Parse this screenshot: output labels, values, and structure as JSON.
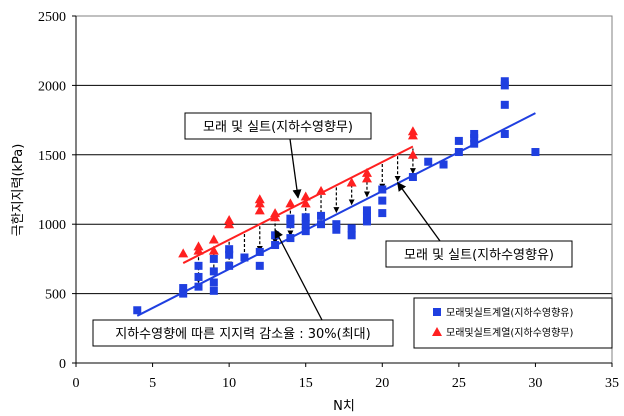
{
  "chart_data": {
    "type": "scatter",
    "xlabel": "N치",
    "ylabel": "극한지지력(kPa)",
    "xlim": [
      0,
      35
    ],
    "ylim": [
      0,
      2500
    ],
    "xticks": [
      "0",
      "5",
      "10",
      "15",
      "20",
      "25",
      "30",
      "35"
    ],
    "yticks": [
      "0",
      "500",
      "1000",
      "1500",
      "2000",
      "2500"
    ],
    "grid": "horizontal",
    "legend_position": "bottom-right",
    "series": [
      {
        "name": "모래및실트계열(지하수영향유)",
        "marker": "square",
        "color": "#1f3fe0",
        "points": [
          [
            4,
            380
          ],
          [
            7,
            500
          ],
          [
            7,
            540
          ],
          [
            8,
            550
          ],
          [
            8,
            620
          ],
          [
            8,
            700
          ],
          [
            9,
            520
          ],
          [
            9,
            580
          ],
          [
            9,
            660
          ],
          [
            9,
            750
          ],
          [
            10,
            700
          ],
          [
            10,
            780
          ],
          [
            10,
            820
          ],
          [
            11,
            760
          ],
          [
            12,
            700
          ],
          [
            12,
            800
          ],
          [
            13,
            850
          ],
          [
            13,
            920
          ],
          [
            14,
            900
          ],
          [
            14,
            1000
          ],
          [
            14,
            1040
          ],
          [
            15,
            950
          ],
          [
            15,
            1000
          ],
          [
            15,
            1050
          ],
          [
            16,
            1000
          ],
          [
            16,
            1060
          ],
          [
            17,
            960
          ],
          [
            17,
            1000
          ],
          [
            18,
            920
          ],
          [
            18,
            970
          ],
          [
            19,
            1020
          ],
          [
            19,
            1060
          ],
          [
            19,
            1100
          ],
          [
            20,
            1080
          ],
          [
            20,
            1170
          ],
          [
            20,
            1250
          ],
          [
            22,
            1340
          ],
          [
            23,
            1450
          ],
          [
            24,
            1430
          ],
          [
            25,
            1520
          ],
          [
            25,
            1600
          ],
          [
            26,
            1580
          ],
          [
            26,
            1620
          ],
          [
            26,
            1650
          ],
          [
            28,
            1650
          ],
          [
            28,
            1860
          ],
          [
            28,
            2000
          ],
          [
            28,
            2030
          ],
          [
            30,
            1520
          ]
        ]
      },
      {
        "name": "모래및실트계열(지하수영향무)",
        "marker": "triangle",
        "color": "#ff2020",
        "points": [
          [
            7,
            790
          ],
          [
            8,
            810
          ],
          [
            8,
            840
          ],
          [
            9,
            810
          ],
          [
            9,
            890
          ],
          [
            10,
            1000
          ],
          [
            10,
            1030
          ],
          [
            12,
            1100
          ],
          [
            12,
            1150
          ],
          [
            12,
            1180
          ],
          [
            13,
            1050
          ],
          [
            13,
            1080
          ],
          [
            14,
            1150
          ],
          [
            15,
            1150
          ],
          [
            15,
            1200
          ],
          [
            16,
            1240
          ],
          [
            18,
            1300
          ],
          [
            19,
            1330
          ],
          [
            19,
            1370
          ],
          [
            22,
            1500
          ],
          [
            22,
            1640
          ],
          [
            22,
            1670
          ]
        ]
      }
    ],
    "trendlines": [
      {
        "series": "모래및실트계열(지하수영향유)",
        "color": "#1f3fe0",
        "from": [
          4,
          340
        ],
        "to": [
          30,
          1800
        ]
      },
      {
        "series": "모래및실트계열(지하수영향무)",
        "color": "#ff2020",
        "from": [
          7,
          720
        ],
        "to": [
          22,
          1560
        ]
      }
    ],
    "reduction_arrows_x": [
      8,
      9,
      10,
      11,
      12,
      13,
      14,
      15,
      16,
      17,
      18,
      19,
      20,
      21,
      22
    ],
    "annotations": [
      {
        "text": "모래 및 실트(지하수영향무)",
        "arrow_to": [
          14.5,
          1190
        ]
      },
      {
        "text": "모래 및 실트(지하수영향유)",
        "arrow_to": [
          21,
          1300
        ]
      },
      {
        "text": "지하수영향에 따른 지지력 감소율 : 30%(최대)",
        "arrow_to": [
          13,
          960
        ]
      }
    ]
  }
}
